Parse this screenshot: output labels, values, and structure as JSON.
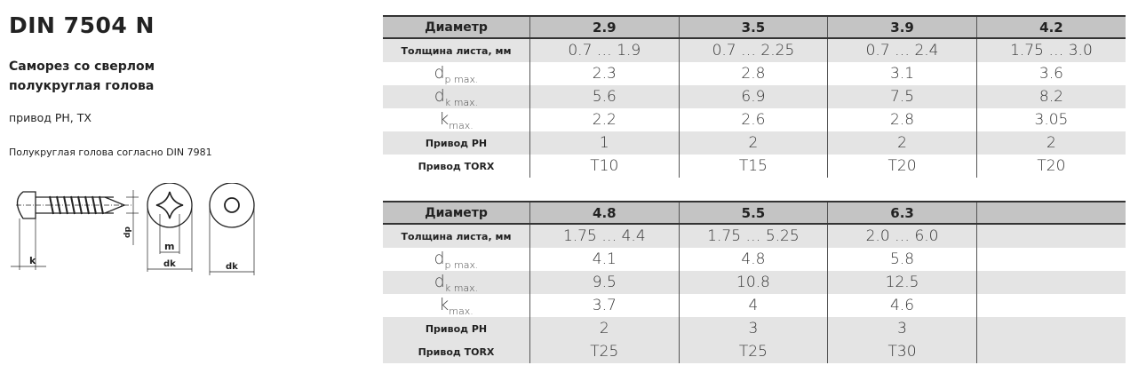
{
  "header": {
    "title": "DIN 7504 N",
    "subtitle_line1": "Саморез со сверлом",
    "subtitle_line2": "полукруглая голова",
    "drive": "привод PH, TX",
    "note": "Полукруглая голова согласно DIN 7981"
  },
  "drawing": {
    "labels": {
      "k": "k",
      "dp": "dp",
      "m": "m",
      "dk": "dk"
    }
  },
  "row_labels": {
    "diameter": "Диаметр",
    "thickness": "Толщина листа, мм",
    "dp_main": "d",
    "dp_sub": "p max.",
    "dk_main": "d",
    "dk_sub": "k max.",
    "k_main": "k",
    "k_sub": "max.",
    "ph": "Привод PH",
    "torx": "Привод TORX"
  },
  "tables": [
    {
      "columns": [
        {
          "diameter": "2.9",
          "thickness": "0.7  …  1.9",
          "dp": "2.3",
          "dk": "5.6",
          "k": "2.2",
          "ph": "1",
          "torx": "T10"
        },
        {
          "diameter": "3.5",
          "thickness": "0.7  …  2.25",
          "dp": "2.8",
          "dk": "6.9",
          "k": "2.6",
          "ph": "2",
          "torx": "T15"
        },
        {
          "diameter": "3.9",
          "thickness": "0.7  …  2.4",
          "dp": "3.1",
          "dk": "7.5",
          "k": "2.8",
          "ph": "2",
          "torx": "T20"
        },
        {
          "diameter": "4.2",
          "thickness": "1.75  …  3.0",
          "dp": "3.6",
          "dk": "8.2",
          "k": "3.05",
          "ph": "2",
          "torx": "T20"
        }
      ]
    },
    {
      "columns": [
        {
          "diameter": "4.8",
          "thickness": "1.75  …  4.4",
          "dp": "4.1",
          "dk": "9.5",
          "k": "3.7",
          "ph": "2",
          "torx": "T25"
        },
        {
          "diameter": "5.5",
          "thickness": "1.75  …  5.25",
          "dp": "4.8",
          "dk": "10.8",
          "k": "4",
          "ph": "3",
          "torx": "T25"
        },
        {
          "diameter": "6.3",
          "thickness": "2.0  …  6.0",
          "dp": "5.8",
          "dk": "12.5",
          "k": "4.6",
          "ph": "3",
          "torx": "T30"
        },
        {
          "diameter": "",
          "thickness": "",
          "dp": "",
          "dk": "",
          "k": "",
          "ph": "",
          "torx": ""
        }
      ]
    }
  ]
}
